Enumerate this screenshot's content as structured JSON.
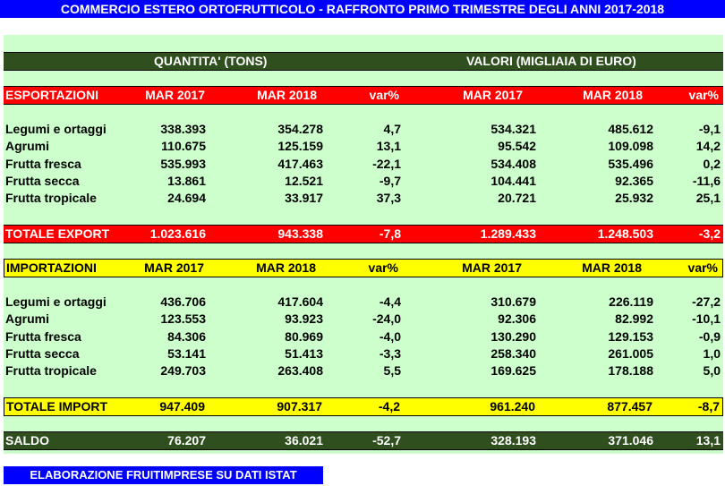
{
  "title": "COMMERCIO ESTERO ORTOFRUTTICOLO - RAFFRONTO PRIMO TRIMESTRE DEGLI ANNI 2017-2018",
  "group_headers": {
    "quantity": "QUANTITA' (TONS)",
    "values": "VALORI (MIGLIAIA DI EURO)"
  },
  "footer": "ELABORAZIONE FRUITIMPRESE SU DATI ISTAT",
  "colors": {
    "title_bg": "#0000ff",
    "panel_bg": "#ccffcc",
    "export_bar": "#ff0000",
    "import_bar": "#ffff00",
    "dark_bar": "#2f4f1f"
  },
  "chart_data": {
    "type": "table",
    "columns": [
      "MAR 2017",
      "MAR 2018",
      "var%",
      "MAR 2017",
      "MAR 2018",
      "var%"
    ],
    "export": {
      "label": "ESPORTAZIONI",
      "rows": [
        {
          "name": "Legumi e ortaggi",
          "cells": [
            "338.393",
            "354.278",
            "4,7",
            "534.321",
            "485.612",
            "-9,1"
          ]
        },
        {
          "name": "Agrumi",
          "cells": [
            "110.675",
            "125.159",
            "13,1",
            "95.542",
            "109.098",
            "14,2"
          ]
        },
        {
          "name": "Frutta fresca",
          "cells": [
            "535.993",
            "417.463",
            "-22,1",
            "534.408",
            "535.496",
            "0,2"
          ]
        },
        {
          "name": "Frutta secca",
          "cells": [
            "13.861",
            "12.521",
            "-9,7",
            "104.441",
            "92.365",
            "-11,6"
          ]
        },
        {
          "name": "Frutta tropicale",
          "cells": [
            "24.694",
            "33.917",
            "37,3",
            "20.721",
            "25.932",
            "25,1"
          ]
        }
      ],
      "total": {
        "name": "TOTALE EXPORT",
        "cells": [
          "1.023.616",
          "943.338",
          "-7,8",
          "1.289.433",
          "1.248.503",
          "-3,2"
        ]
      }
    },
    "import": {
      "label": "IMPORTAZIONI",
      "rows": [
        {
          "name": "Legumi e ortaggi",
          "cells": [
            "436.706",
            "417.604",
            "-4,4",
            "310.679",
            "226.119",
            "-27,2"
          ]
        },
        {
          "name": "Agrumi",
          "cells": [
            "123.553",
            "93.923",
            "-24,0",
            "92.306",
            "82.992",
            "-10,1"
          ]
        },
        {
          "name": "Frutta fresca",
          "cells": [
            "84.306",
            "80.969",
            "-4,0",
            "130.290",
            "129.153",
            "-0,9"
          ]
        },
        {
          "name": "Frutta secca",
          "cells": [
            "53.141",
            "51.413",
            "-3,3",
            "258.340",
            "261.005",
            "1,0"
          ]
        },
        {
          "name": "Frutta tropicale",
          "cells": [
            "249.703",
            "263.408",
            "5,5",
            "169.625",
            "178.188",
            "5,0"
          ]
        }
      ],
      "total": {
        "name": "TOTALE IMPORT",
        "cells": [
          "947.409",
          "907.317",
          "-4,2",
          "961.240",
          "877.457",
          "-8,7"
        ]
      }
    },
    "balance": {
      "name": "SALDO",
      "cells": [
        "76.207",
        "36.021",
        "-52,7",
        "328.193",
        "371.046",
        "13,1"
      ]
    }
  }
}
